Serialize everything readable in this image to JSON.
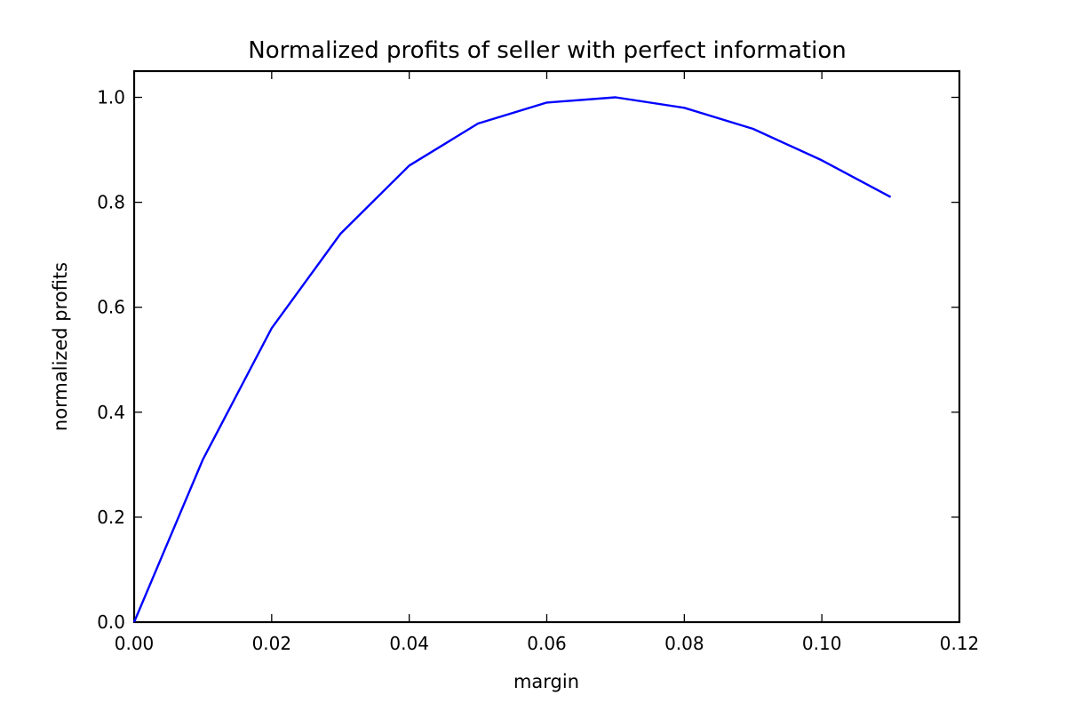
{
  "chart_data": {
    "type": "line",
    "title": "Normalized profits of seller with perfect information",
    "xlabel": "margin",
    "ylabel": "normalized profits",
    "xlim": [
      0.0,
      0.12
    ],
    "ylim": [
      0.0,
      1.05
    ],
    "x_ticks": [
      0.0,
      0.02,
      0.04,
      0.06,
      0.08,
      0.1,
      0.12
    ],
    "x_tick_labels": [
      "0.00",
      "0.02",
      "0.04",
      "0.06",
      "0.08",
      "0.10",
      "0.12"
    ],
    "y_ticks": [
      0.0,
      0.2,
      0.4,
      0.6,
      0.8,
      1.0
    ],
    "y_tick_labels": [
      "0.0",
      "0.2",
      "0.4",
      "0.6",
      "0.8",
      "1.0"
    ],
    "grid": false,
    "series": [
      {
        "color": "#0000ff",
        "x": [
          0.0,
          0.01,
          0.02,
          0.03,
          0.04,
          0.05,
          0.06,
          0.07,
          0.08,
          0.09,
          0.1,
          0.11
        ],
        "y": [
          0.0,
          0.31,
          0.56,
          0.74,
          0.87,
          0.95,
          0.99,
          1.0,
          0.98,
          0.94,
          0.88,
          0.81
        ]
      }
    ]
  }
}
